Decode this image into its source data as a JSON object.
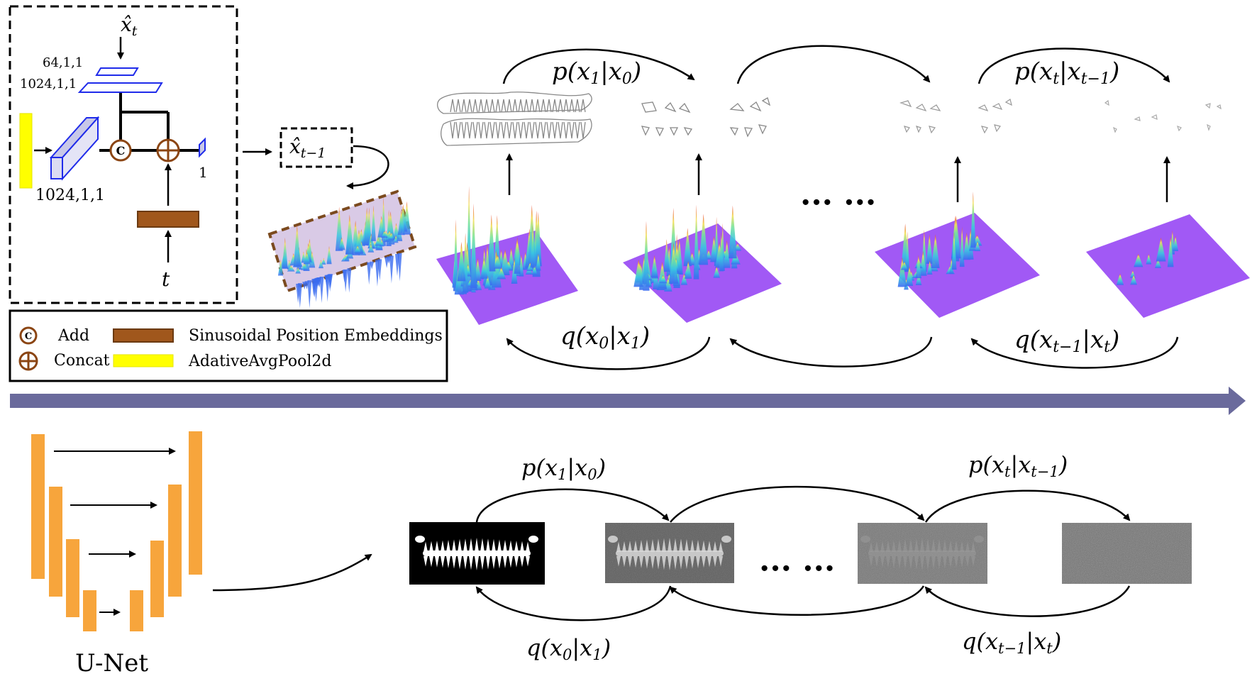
{
  "module": {
    "input_symbol": "x̂",
    "input_sub": "t",
    "dim_64": "64,1,1",
    "dim_1024_top": "1024,1,1",
    "dim_1024_bottom": "1024,1,1",
    "output_dim": "1",
    "concat_symbol": "C",
    "time_symbol": "t"
  },
  "prediction": {
    "symbol": "x̂",
    "sub": "t−1"
  },
  "legend": {
    "add_label": "Add",
    "concat_label": "Concat",
    "sinusoidal_label": "Sinusoidal Position Embeddings",
    "pool_label": "AdativeAvgPool2d",
    "add_glyph": "C"
  },
  "top_chain": {
    "p1": "p(x",
    "p1_sub": "1",
    "p1_mid": "|x",
    "p1_sub2": "0",
    "p1_end": ")",
    "pt": "p(x",
    "pt_sub": "t",
    "pt_mid": "|x",
    "pt_sub2": "t−1",
    "pt_end": ")",
    "q0": "q(x",
    "q0_sub": "0",
    "q0_mid": "|x",
    "q0_sub2": "1",
    "q0_end": ")",
    "qt": "q(x",
    "qt_sub": "t−1",
    "qt_mid": "|x",
    "qt_sub2": "t",
    "qt_end": ")",
    "ellipsis": "··· ···"
  },
  "bottom_chain": {
    "p1": "p(x",
    "p1_sub": "1",
    "p1_mid": "|x",
    "p1_sub2": "0",
    "p1_end": ")",
    "pt": "p(x",
    "pt_sub": "t",
    "pt_mid": "|x",
    "pt_sub2": "t−1",
    "pt_end": ")",
    "q0": "q(x",
    "q0_sub": "0",
    "q0_mid": "|x",
    "q0_sub2": "1",
    "q0_end": ")",
    "qt": "q(x",
    "qt_sub": "t−1",
    "qt_mid": "|x",
    "qt_sub2": "t",
    "qt_end": ")",
    "ellipsis": "··· ···"
  },
  "unet": {
    "label": "U-Net"
  },
  "colors": {
    "unet_orange": "#F7A53C",
    "embedding_brown": "#A0571C",
    "pool_yellow": "#FFFF00",
    "blue_outline": "#1F2BEA",
    "divider_arrow": "#6A6A9C",
    "surface_purple": "#A159F5",
    "dashed_box_brown": "#7B4A1E"
  }
}
